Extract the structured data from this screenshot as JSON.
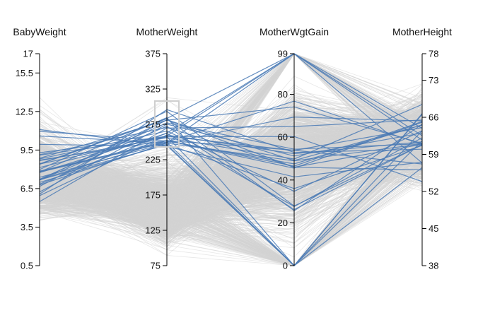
{
  "chart_data": {
    "type": "parallel-coordinates",
    "title": "",
    "axes": [
      {
        "name": "BabyWeight",
        "domain": [
          0.5,
          17
        ],
        "ticks": [
          "17",
          "15.5",
          "12.5",
          "9.5",
          "6.5",
          "3.5",
          "0.5"
        ],
        "tick_values": [
          17,
          15.5,
          12.5,
          9.5,
          6.5,
          3.5,
          0.5
        ]
      },
      {
        "name": "MotherWeight",
        "domain": [
          75,
          375
        ],
        "ticks": [
          "375",
          "325",
          "275",
          "225",
          "175",
          "125",
          "75"
        ],
        "tick_values": [
          375,
          325,
          275,
          225,
          175,
          125,
          75
        ]
      },
      {
        "name": "MotherWgtGain",
        "domain": [
          0,
          99
        ],
        "ticks": [
          "99",
          "80",
          "60",
          "40",
          "20",
          "0"
        ],
        "tick_values": [
          99,
          80,
          60,
          40,
          20,
          0
        ]
      },
      {
        "name": "MotherHeight",
        "domain": [
          38,
          78
        ],
        "ticks": [
          "78",
          "73",
          "66",
          "59",
          "52",
          "45",
          "38"
        ],
        "tick_values": [
          78,
          73,
          66,
          59,
          52,
          45,
          38
        ]
      }
    ],
    "brush": {
      "axis": "MotherWeight",
      "range": [
        243,
        308
      ]
    },
    "colors": {
      "selected": "#4a7ab5",
      "unselected": "#d3d3d3"
    },
    "grid": false
  }
}
